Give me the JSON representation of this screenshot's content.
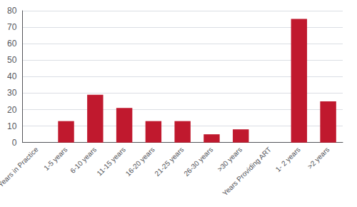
{
  "chart_data": {
    "type": "bar",
    "categories": [
      "Years in Practice",
      "1-5 years",
      "6-10 years",
      "11-15 years",
      "16-20 years",
      "21-25 years",
      "26-30 years",
      ">30 years",
      "Years Providing ART",
      "1- 2 years",
      ">2 years"
    ],
    "values": [
      0,
      13,
      29,
      21,
      13,
      13,
      5,
      8,
      0,
      75,
      25
    ],
    "color": "#C0192E",
    "ylim": [
      0,
      80
    ],
    "yticks": [
      0,
      10,
      20,
      30,
      40,
      50,
      60,
      70,
      80
    ],
    "grid": true
  }
}
